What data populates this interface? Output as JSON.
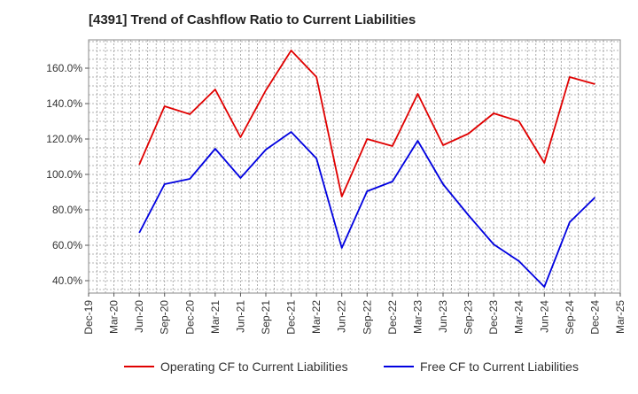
{
  "chart_data": {
    "type": "line",
    "title": "[4391]  Trend of Cashflow Ratio to Current Liabilities",
    "xlabel": "",
    "ylabel": "",
    "x_ticks": [
      "Dec-19",
      "Mar-20",
      "Jun-20",
      "Sep-20",
      "Dec-20",
      "Mar-21",
      "Jun-21",
      "Sep-21",
      "Dec-21",
      "Mar-22",
      "Jun-22",
      "Sep-22",
      "Dec-22",
      "Mar-23",
      "Jun-23",
      "Sep-23",
      "Dec-23",
      "Mar-24",
      "Jun-24",
      "Sep-24",
      "Dec-24",
      "Mar-25"
    ],
    "y_ticks": [
      "40.0%",
      "60.0%",
      "80.0%",
      "100.0%",
      "120.0%",
      "140.0%",
      "160.0%"
    ],
    "y_tick_values": [
      40,
      60,
      80,
      100,
      120,
      140,
      160
    ],
    "ylim": [
      33,
      176
    ],
    "grid": true,
    "legend_position": "bottom",
    "series": [
      {
        "name": "Operating CF to Current Liabilities",
        "color": "#e00000",
        "x": [
          "Jun-20",
          "Sep-20",
          "Dec-20",
          "Mar-21",
          "Jun-21",
          "Sep-21",
          "Dec-21",
          "Mar-22",
          "Jun-22",
          "Sep-22",
          "Dec-22",
          "Mar-23",
          "Jun-23",
          "Sep-23",
          "Dec-23",
          "Mar-24",
          "Jun-24",
          "Sep-24",
          "Dec-24"
        ],
        "values": [
          105.5,
          138.5,
          134,
          148,
          121,
          147.5,
          170,
          155,
          87.5,
          120,
          116,
          145.5,
          116.5,
          123,
          134.5,
          130,
          106.5,
          155,
          151
        ]
      },
      {
        "name": "Free CF to Current Liabilities",
        "color": "#0000e0",
        "x": [
          "Jun-20",
          "Sep-20",
          "Dec-20",
          "Mar-21",
          "Jun-21",
          "Sep-21",
          "Dec-21",
          "Mar-22",
          "Jun-22",
          "Sep-22",
          "Dec-22",
          "Mar-23",
          "Jun-23",
          "Sep-23",
          "Dec-23",
          "Mar-24",
          "Jun-24",
          "Sep-24",
          "Dec-24"
        ],
        "values": [
          67,
          94.5,
          97.5,
          114.5,
          98,
          114,
          124,
          109,
          58.5,
          90.5,
          96,
          119,
          94.5,
          77,
          60.5,
          51,
          36.5,
          73,
          87
        ]
      }
    ]
  }
}
